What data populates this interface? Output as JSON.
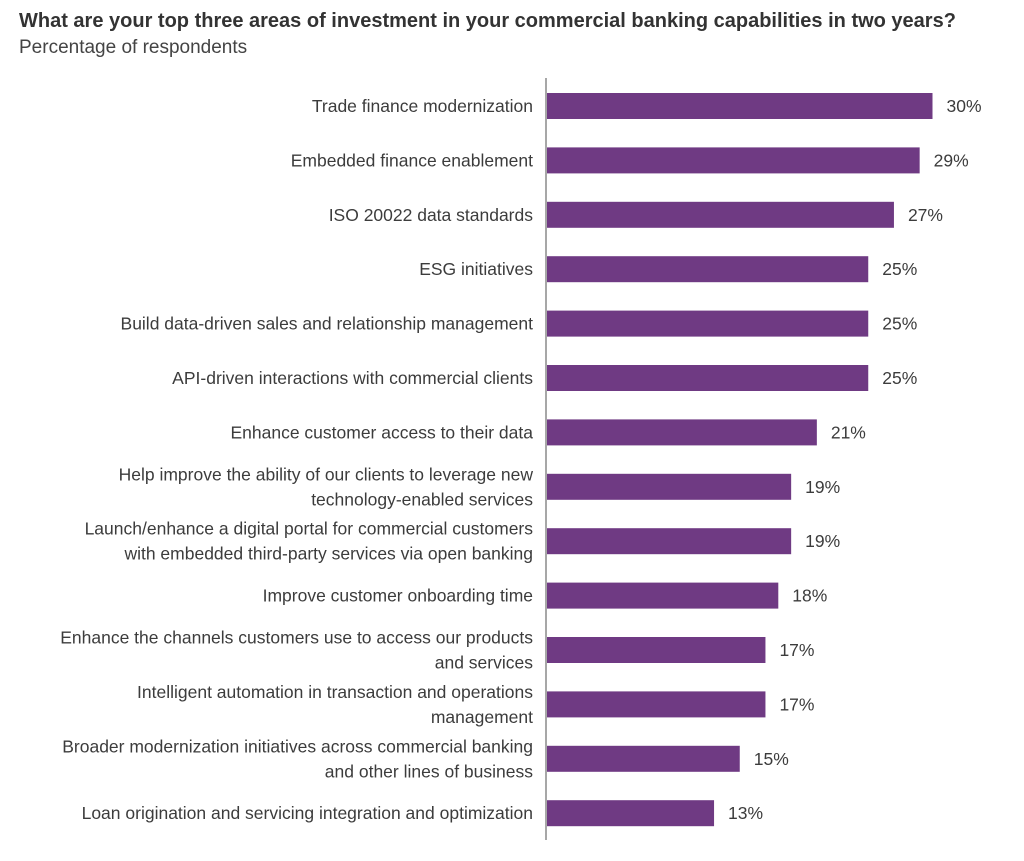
{
  "chart_data": {
    "type": "bar",
    "orientation": "horizontal",
    "title": "What are your top three areas of investment in your commercial banking capabilities in two years?",
    "subtitle": "Percentage of respondents",
    "xlabel": "",
    "ylabel": "",
    "xlim": [
      0,
      30
    ],
    "grid": false,
    "value_suffix": "%",
    "bar_color": "#6f3a83",
    "categories": [
      [
        "Trade finance modernization"
      ],
      [
        "Embedded finance enablement"
      ],
      [
        "ISO 20022 data standards"
      ],
      [
        "ESG initiatives"
      ],
      [
        "Build data-driven sales and relationship management"
      ],
      [
        "API-driven interactions with commercial clients"
      ],
      [
        "Enhance customer access to their data"
      ],
      [
        "Help improve the ability of our clients to leverage new",
        "technology-enabled services"
      ],
      [
        "Launch/enhance a digital portal for commercial customers",
        "with embedded third-party services via open banking"
      ],
      [
        "Improve customer onboarding time"
      ],
      [
        "Enhance the channels customers use to access our products",
        "and services"
      ],
      [
        "Intelligent automation in transaction and operations",
        "management"
      ],
      [
        "Broader modernization initiatives across commercial banking",
        "and other lines of business"
      ],
      [
        "Loan origination and servicing integration and optimization"
      ]
    ],
    "values": [
      30,
      29,
      27,
      25,
      25,
      25,
      21,
      19,
      19,
      18,
      17,
      17,
      15,
      13
    ]
  }
}
